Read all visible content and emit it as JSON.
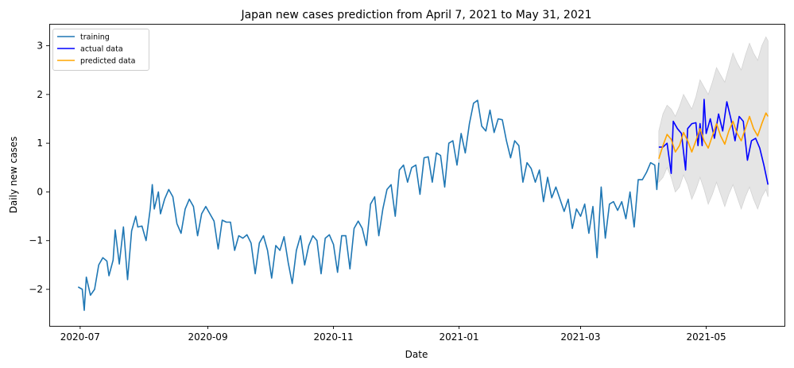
{
  "chart_data": {
    "type": "line",
    "title": "Japan new cases prediction from April 7, 2021 to May 31, 2021",
    "xlabel": "Date",
    "ylabel": "Daily new cases",
    "xlim": [
      "2020-06-16",
      "2021-06-08"
    ],
    "ylim": [
      -2.75,
      3.45
    ],
    "x_ticks": [
      "2020-07-01",
      "2020-09-01",
      "2020-11-01",
      "2021-01-01",
      "2021-03-01",
      "2021-05-01"
    ],
    "x_tick_labels": [
      "2020-07",
      "2020-09",
      "2020-11",
      "2021-01",
      "2021-03",
      "2021-05"
    ],
    "y_ticks": [
      -2,
      -1,
      0,
      1,
      2,
      3
    ],
    "y_tick_labels": [
      "−2",
      "−1",
      "0",
      "1",
      "2",
      "3"
    ],
    "grid": false,
    "legend_position": "top-left",
    "colors": {
      "training": "#1f77b4",
      "actual": "#0000ff",
      "predicted": "#ffa500",
      "band": "#d3d3d3"
    },
    "series": [
      {
        "name": "training",
        "points": [
          [
            "2020-06-30",
            -1.95
          ],
          [
            "2020-07-02",
            -2.0
          ],
          [
            "2020-07-03",
            -2.43
          ],
          [
            "2020-07-04",
            -1.75
          ],
          [
            "2020-07-06",
            -2.12
          ],
          [
            "2020-07-08",
            -2.0
          ],
          [
            "2020-07-10",
            -1.5
          ],
          [
            "2020-07-12",
            -1.35
          ],
          [
            "2020-07-14",
            -1.42
          ],
          [
            "2020-07-15",
            -1.72
          ],
          [
            "2020-07-17",
            -1.4
          ],
          [
            "2020-07-18",
            -0.78
          ],
          [
            "2020-07-20",
            -1.48
          ],
          [
            "2020-07-22",
            -0.72
          ],
          [
            "2020-07-24",
            -1.8
          ],
          [
            "2020-07-26",
            -0.8
          ],
          [
            "2020-07-28",
            -0.5
          ],
          [
            "2020-07-29",
            -0.72
          ],
          [
            "2020-07-31",
            -0.7
          ],
          [
            "2020-08-02",
            -1.0
          ],
          [
            "2020-08-04",
            -0.35
          ],
          [
            "2020-08-05",
            0.15
          ],
          [
            "2020-08-06",
            -0.35
          ],
          [
            "2020-08-08",
            0.0
          ],
          [
            "2020-08-09",
            -0.45
          ],
          [
            "2020-08-11",
            -0.15
          ],
          [
            "2020-08-13",
            0.05
          ],
          [
            "2020-08-15",
            -0.1
          ],
          [
            "2020-08-17",
            -0.65
          ],
          [
            "2020-08-19",
            -0.85
          ],
          [
            "2020-08-21",
            -0.35
          ],
          [
            "2020-08-23",
            -0.15
          ],
          [
            "2020-08-25",
            -0.3
          ],
          [
            "2020-08-27",
            -0.9
          ],
          [
            "2020-08-29",
            -0.45
          ],
          [
            "2020-08-31",
            -0.3
          ],
          [
            "2020-09-02",
            -0.45
          ],
          [
            "2020-09-04",
            -0.6
          ],
          [
            "2020-09-06",
            -1.17
          ],
          [
            "2020-09-08",
            -0.58
          ],
          [
            "2020-09-10",
            -0.62
          ],
          [
            "2020-09-12",
            -0.62
          ],
          [
            "2020-09-14",
            -1.2
          ],
          [
            "2020-09-16",
            -0.9
          ],
          [
            "2020-09-18",
            -0.95
          ],
          [
            "2020-09-20",
            -0.88
          ],
          [
            "2020-09-22",
            -1.05
          ],
          [
            "2020-09-24",
            -1.68
          ],
          [
            "2020-09-26",
            -1.05
          ],
          [
            "2020-09-28",
            -0.9
          ],
          [
            "2020-09-30",
            -1.2
          ],
          [
            "2020-10-02",
            -1.77
          ],
          [
            "2020-10-04",
            -1.1
          ],
          [
            "2020-10-06",
            -1.2
          ],
          [
            "2020-10-08",
            -0.92
          ],
          [
            "2020-10-10",
            -1.45
          ],
          [
            "2020-10-12",
            -1.88
          ],
          [
            "2020-10-14",
            -1.2
          ],
          [
            "2020-10-16",
            -0.9
          ],
          [
            "2020-10-18",
            -1.5
          ],
          [
            "2020-10-20",
            -1.1
          ],
          [
            "2020-10-22",
            -0.9
          ],
          [
            "2020-10-24",
            -1.0
          ],
          [
            "2020-10-26",
            -1.68
          ],
          [
            "2020-10-28",
            -0.95
          ],
          [
            "2020-10-30",
            -0.88
          ],
          [
            "2020-11-01",
            -1.08
          ],
          [
            "2020-11-03",
            -1.65
          ],
          [
            "2020-11-05",
            -0.9
          ],
          [
            "2020-11-07",
            -0.9
          ],
          [
            "2020-11-09",
            -1.58
          ],
          [
            "2020-11-11",
            -0.75
          ],
          [
            "2020-11-13",
            -0.6
          ],
          [
            "2020-11-15",
            -0.75
          ],
          [
            "2020-11-17",
            -1.1
          ],
          [
            "2020-11-19",
            -0.25
          ],
          [
            "2020-11-21",
            -0.1
          ],
          [
            "2020-11-23",
            -0.9
          ],
          [
            "2020-11-25",
            -0.35
          ],
          [
            "2020-11-27",
            0.05
          ],
          [
            "2020-11-29",
            0.15
          ],
          [
            "2020-12-01",
            -0.5
          ],
          [
            "2020-12-03",
            0.45
          ],
          [
            "2020-12-05",
            0.55
          ],
          [
            "2020-12-07",
            0.2
          ],
          [
            "2020-12-09",
            0.5
          ],
          [
            "2020-12-11",
            0.55
          ],
          [
            "2020-12-13",
            -0.05
          ],
          [
            "2020-12-15",
            0.7
          ],
          [
            "2020-12-17",
            0.72
          ],
          [
            "2020-12-19",
            0.2
          ],
          [
            "2020-12-21",
            0.8
          ],
          [
            "2020-12-23",
            0.75
          ],
          [
            "2020-12-25",
            0.1
          ],
          [
            "2020-12-27",
            1.0
          ],
          [
            "2020-12-29",
            1.05
          ],
          [
            "2020-12-31",
            0.55
          ],
          [
            "2021-01-02",
            1.2
          ],
          [
            "2021-01-04",
            0.8
          ],
          [
            "2021-01-06",
            1.4
          ],
          [
            "2021-01-08",
            1.82
          ],
          [
            "2021-01-10",
            1.88
          ],
          [
            "2021-01-12",
            1.35
          ],
          [
            "2021-01-14",
            1.25
          ],
          [
            "2021-01-16",
            1.68
          ],
          [
            "2021-01-18",
            1.22
          ],
          [
            "2021-01-20",
            1.5
          ],
          [
            "2021-01-22",
            1.48
          ],
          [
            "2021-01-24",
            1.05
          ],
          [
            "2021-01-26",
            0.7
          ],
          [
            "2021-01-28",
            1.05
          ],
          [
            "2021-01-30",
            0.95
          ],
          [
            "2021-02-01",
            0.2
          ],
          [
            "2021-02-03",
            0.6
          ],
          [
            "2021-02-05",
            0.48
          ],
          [
            "2021-02-07",
            0.2
          ],
          [
            "2021-02-09",
            0.45
          ],
          [
            "2021-02-11",
            -0.2
          ],
          [
            "2021-02-13",
            0.3
          ],
          [
            "2021-02-15",
            -0.12
          ],
          [
            "2021-02-17",
            0.1
          ],
          [
            "2021-02-19",
            -0.15
          ],
          [
            "2021-02-21",
            -0.4
          ],
          [
            "2021-02-23",
            -0.15
          ],
          [
            "2021-02-25",
            -0.75
          ],
          [
            "2021-02-27",
            -0.35
          ],
          [
            "2021-03-01",
            -0.5
          ],
          [
            "2021-03-03",
            -0.25
          ],
          [
            "2021-03-05",
            -0.85
          ],
          [
            "2021-03-07",
            -0.3
          ],
          [
            "2021-03-09",
            -1.35
          ],
          [
            "2021-03-11",
            0.1
          ],
          [
            "2021-03-13",
            -0.95
          ],
          [
            "2021-03-15",
            -0.25
          ],
          [
            "2021-03-17",
            -0.2
          ],
          [
            "2021-03-19",
            -0.38
          ],
          [
            "2021-03-21",
            -0.2
          ],
          [
            "2021-03-23",
            -0.55
          ],
          [
            "2021-03-25",
            0.0
          ],
          [
            "2021-03-27",
            -0.72
          ],
          [
            "2021-03-29",
            0.25
          ],
          [
            "2021-03-31",
            0.25
          ],
          [
            "2021-04-02",
            0.4
          ],
          [
            "2021-04-04",
            0.6
          ],
          [
            "2021-04-06",
            0.55
          ],
          [
            "2021-04-07",
            0.05
          ],
          [
            "2021-04-08",
            0.6
          ]
        ]
      },
      {
        "name": "actual data",
        "points": [
          [
            "2021-04-08",
            0.92
          ],
          [
            "2021-04-10",
            0.92
          ],
          [
            "2021-04-12",
            1.0
          ],
          [
            "2021-04-14",
            0.38
          ],
          [
            "2021-04-15",
            1.45
          ],
          [
            "2021-04-17",
            1.3
          ],
          [
            "2021-04-19",
            1.2
          ],
          [
            "2021-04-21",
            0.45
          ],
          [
            "2021-04-22",
            1.3
          ],
          [
            "2021-04-24",
            1.4
          ],
          [
            "2021-04-26",
            1.42
          ],
          [
            "2021-04-27",
            0.95
          ],
          [
            "2021-04-28",
            1.4
          ],
          [
            "2021-04-29",
            0.95
          ],
          [
            "2021-04-30",
            1.9
          ],
          [
            "2021-05-01",
            1.2
          ],
          [
            "2021-05-03",
            1.5
          ],
          [
            "2021-05-05",
            1.1
          ],
          [
            "2021-05-07",
            1.6
          ],
          [
            "2021-05-09",
            1.25
          ],
          [
            "2021-05-11",
            1.85
          ],
          [
            "2021-05-13",
            1.5
          ],
          [
            "2021-05-15",
            1.05
          ],
          [
            "2021-05-17",
            1.55
          ],
          [
            "2021-05-19",
            1.45
          ],
          [
            "2021-05-21",
            0.65
          ],
          [
            "2021-05-23",
            1.05
          ],
          [
            "2021-05-25",
            1.1
          ],
          [
            "2021-05-27",
            0.9
          ],
          [
            "2021-05-29",
            0.55
          ],
          [
            "2021-05-31",
            0.15
          ]
        ]
      },
      {
        "name": "predicted data",
        "points": [
          [
            "2021-04-08",
            0.68
          ],
          [
            "2021-04-10",
            0.95
          ],
          [
            "2021-04-12",
            1.18
          ],
          [
            "2021-04-14",
            1.08
          ],
          [
            "2021-04-16",
            0.82
          ],
          [
            "2021-04-18",
            0.95
          ],
          [
            "2021-04-20",
            1.22
          ],
          [
            "2021-04-22",
            1.05
          ],
          [
            "2021-04-24",
            0.82
          ],
          [
            "2021-04-26",
            1.05
          ],
          [
            "2021-04-28",
            1.3
          ],
          [
            "2021-04-30",
            1.05
          ],
          [
            "2021-05-02",
            0.9
          ],
          [
            "2021-05-04",
            1.15
          ],
          [
            "2021-05-06",
            1.4
          ],
          [
            "2021-05-08",
            1.15
          ],
          [
            "2021-05-10",
            0.98
          ],
          [
            "2021-05-12",
            1.25
          ],
          [
            "2021-05-14",
            1.45
          ],
          [
            "2021-05-16",
            1.2
          ],
          [
            "2021-05-18",
            1.05
          ],
          [
            "2021-05-20",
            1.3
          ],
          [
            "2021-05-22",
            1.55
          ],
          [
            "2021-05-24",
            1.3
          ],
          [
            "2021-05-26",
            1.15
          ],
          [
            "2021-05-28",
            1.4
          ],
          [
            "2021-05-30",
            1.62
          ],
          [
            "2021-05-31",
            1.55
          ]
        ]
      }
    ],
    "confidence_band": {
      "upper": [
        [
          "2021-04-08",
          1.25
        ],
        [
          "2021-04-10",
          1.6
        ],
        [
          "2021-04-12",
          1.78
        ],
        [
          "2021-04-14",
          1.7
        ],
        [
          "2021-04-16",
          1.55
        ],
        [
          "2021-04-18",
          1.75
        ],
        [
          "2021-04-20",
          2.0
        ],
        [
          "2021-04-22",
          1.85
        ],
        [
          "2021-04-24",
          1.7
        ],
        [
          "2021-04-26",
          1.95
        ],
        [
          "2021-04-28",
          2.3
        ],
        [
          "2021-04-30",
          2.15
        ],
        [
          "2021-05-02",
          2.0
        ],
        [
          "2021-05-04",
          2.25
        ],
        [
          "2021-05-06",
          2.55
        ],
        [
          "2021-05-08",
          2.4
        ],
        [
          "2021-05-10",
          2.25
        ],
        [
          "2021-05-12",
          2.55
        ],
        [
          "2021-05-14",
          2.85
        ],
        [
          "2021-05-16",
          2.65
        ],
        [
          "2021-05-18",
          2.5
        ],
        [
          "2021-05-20",
          2.8
        ],
        [
          "2021-05-22",
          3.05
        ],
        [
          "2021-05-24",
          2.85
        ],
        [
          "2021-05-26",
          2.7
        ],
        [
          "2021-05-28",
          3.0
        ],
        [
          "2021-05-30",
          3.18
        ],
        [
          "2021-05-31",
          3.1
        ]
      ],
      "lower": [
        [
          "2021-04-08",
          0.2
        ],
        [
          "2021-04-10",
          0.3
        ],
        [
          "2021-04-12",
          0.5
        ],
        [
          "2021-04-14",
          0.3
        ],
        [
          "2021-04-16",
          0.0
        ],
        [
          "2021-04-18",
          0.1
        ],
        [
          "2021-04-20",
          0.35
        ],
        [
          "2021-04-22",
          0.15
        ],
        [
          "2021-04-24",
          -0.15
        ],
        [
          "2021-04-26",
          0.05
        ],
        [
          "2021-04-28",
          0.3
        ],
        [
          "2021-04-30",
          0.05
        ],
        [
          "2021-05-02",
          -0.25
        ],
        [
          "2021-05-04",
          -0.05
        ],
        [
          "2021-05-06",
          0.2
        ],
        [
          "2021-05-08",
          -0.05
        ],
        [
          "2021-05-10",
          -0.3
        ],
        [
          "2021-05-12",
          -0.05
        ],
        [
          "2021-05-14",
          0.15
        ],
        [
          "2021-05-16",
          -0.1
        ],
        [
          "2021-05-18",
          -0.35
        ],
        [
          "2021-05-20",
          -0.1
        ],
        [
          "2021-05-22",
          0.1
        ],
        [
          "2021-05-24",
          -0.15
        ],
        [
          "2021-05-26",
          -0.35
        ],
        [
          "2021-05-28",
          -0.1
        ],
        [
          "2021-05-30",
          0.05
        ],
        [
          "2021-05-31",
          -0.1
        ]
      ]
    }
  }
}
